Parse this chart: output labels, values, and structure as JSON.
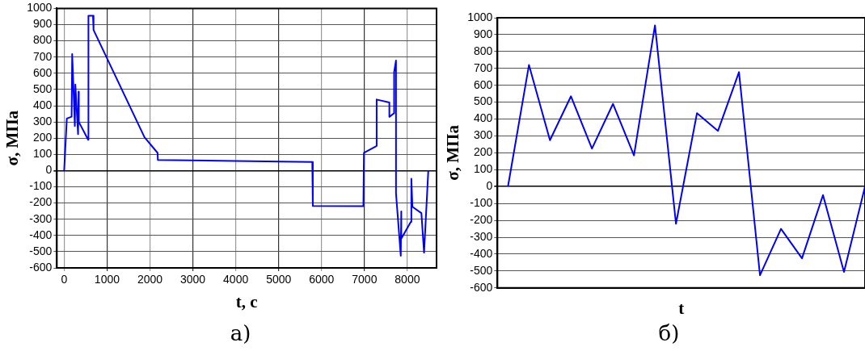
{
  "chart_data": [
    {
      "type": "line",
      "xlabel": "t, с",
      "ylabel": "σ, МПа",
      "annotations": [
        "а)"
      ],
      "x": [
        0,
        62,
        174,
        187,
        249,
        261,
        324,
        336,
        342,
        560,
        566,
        672,
        685,
        1873,
        2178,
        2184,
        5784,
        5796,
        6975,
        6988,
        7284,
        7284,
        7580,
        7580,
        7685,
        7691,
        7735,
        7735,
        7846,
        7858,
        7858,
        8080,
        8093,
        8117,
        8327,
        8389,
        8488
      ],
      "series": [
        {
          "color": "#0000ff",
          "values": [
            0,
            321,
            332,
            719,
            275,
            530,
            225,
            487,
            300,
            190,
            955,
            955,
            867,
            205,
            109,
            66,
            53,
            -218,
            -220,
            109,
            152,
            438,
            420,
            331,
            353,
            607,
            679,
            -140,
            -525,
            -252,
            -420,
            -316,
            -50,
            -223,
            -262,
            -506,
            0
          ]
        }
      ],
      "xlim": [
        -170,
        8680
      ],
      "xticks": [
        0,
        1000,
        2000,
        3000,
        4000,
        5000,
        6000,
        7000,
        8000
      ],
      "ylim": [
        -600,
        1000
      ],
      "yticks": [
        -600,
        -500,
        -400,
        -300,
        -200,
        -100,
        0,
        100,
        200,
        300,
        400,
        500,
        600,
        700,
        800,
        900,
        1000
      ],
      "grid": true,
      "legend": false,
      "marker": "none",
      "line_style": "solid"
    },
    {
      "type": "line",
      "xlabel": "t",
      "ylabel": "σ, МПа",
      "annotations": [
        "б)"
      ],
      "categories": [
        null,
        null,
        null,
        null,
        null,
        null,
        null,
        null,
        null,
        null,
        null,
        null,
        null,
        null,
        null,
        null,
        null,
        null
      ],
      "series": [
        {
          "color": "#0000ff",
          "values": [
            0,
            720,
            275,
            535,
            225,
            490,
            185,
            955,
            -220,
            435,
            330,
            678,
            -525,
            -250,
            -425,
            -50,
            -505,
            0
          ]
        }
      ],
      "ylim": [
        -600,
        1000
      ],
      "yticks": [
        -600,
        -500,
        -400,
        -300,
        -200,
        -100,
        0,
        100,
        200,
        300,
        400,
        500,
        600,
        700,
        800,
        900,
        1000
      ],
      "grid": "y",
      "legend": false,
      "marker": "none",
      "line_style": "solid",
      "tick_labels": "y"
    }
  ]
}
